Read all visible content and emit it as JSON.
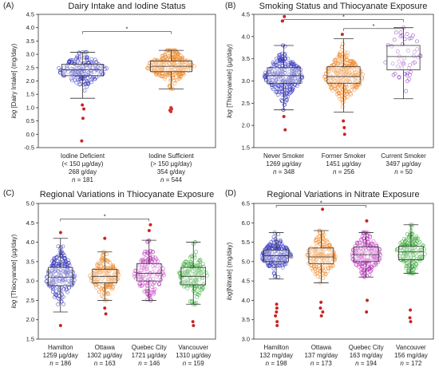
{
  "chart_data": [
    {
      "type": "box",
      "panel_label": "(A)",
      "title": "Dairy Intake and Iodine Status",
      "ylabel": "log [Dairy Intake] (mg/day)",
      "ylabel_italic": "log",
      "ylabel_rest": " [Dairy Intake] (mg/day)",
      "ylim": [
        -0.5,
        4.5
      ],
      "yticks": [
        "-0.5",
        "0.0",
        "0.5",
        "1.0",
        "1.5",
        "2.0",
        "2.5",
        "3.0",
        "3.5",
        "4.0",
        "4.5"
      ],
      "tick_values": [
        -0.5,
        0,
        0.5,
        1,
        1.5,
        2,
        2.5,
        3,
        3.5,
        4,
        4.5
      ],
      "categories": [
        {
          "lines": [
            "Iodine Deficient",
            "(< 150 µg/day)",
            "268 g/day"
          ],
          "n": "181"
        },
        {
          "lines": [
            "Iodine Sufficient",
            "(> 150 µg/day)",
            "354 g/day"
          ],
          "n": "544"
        }
      ],
      "series": [
        {
          "color": "#3b3bbf",
          "q1": 2.2,
          "median": 2.42,
          "q3": 2.63,
          "wlo": 1.35,
          "whi": 3.08,
          "count": 181,
          "outliers": [
            1.1,
            0.95,
            0.6,
            -0.25
          ]
        },
        {
          "color": "#f08a2c",
          "color2": "#d33333",
          "q1": 2.35,
          "median": 2.55,
          "q3": 2.75,
          "wlo": 1.7,
          "whi": 3.15,
          "count": 544,
          "outliers": [
            1.0,
            0.9,
            0.95,
            0.85
          ]
        }
      ],
      "significance": [
        {
          "from": 0,
          "to": 1,
          "y": 3.85,
          "label": "*"
        }
      ]
    },
    {
      "type": "box",
      "panel_label": "(B)",
      "title": "Smoking Status and Thiocyanate Exposure",
      "ylabel": "log [Thiocyanate] (µg/day)",
      "ylabel_italic": "log",
      "ylabel_rest": " [Thiocyanate] (µg/day)",
      "ylim": [
        1.5,
        4.5
      ],
      "yticks": [
        "1.5",
        "2.0",
        "2.5",
        "3.0",
        "3.5",
        "4.0",
        "4.5"
      ],
      "tick_values": [
        1.5,
        2,
        2.5,
        3,
        3.5,
        4,
        4.5
      ],
      "categories": [
        {
          "lines": [
            "Never Smoker",
            "1269 µg/day"
          ],
          "n": "348"
        },
        {
          "lines": [
            "Former Smoker",
            "1451 µg/day"
          ],
          "n": "256"
        },
        {
          "lines": [
            "Current Smoker",
            "3497 µg/day"
          ],
          "n": "50"
        }
      ],
      "series": [
        {
          "color": "#3b3bbf",
          "q1": 2.95,
          "median": 3.12,
          "q3": 3.3,
          "wlo": 2.35,
          "whi": 3.8,
          "count": 348,
          "outliers": [
            4.45,
            4.35,
            2.2,
            1.9
          ]
        },
        {
          "color": "#f08a2c",
          "q1": 2.95,
          "median": 3.1,
          "q3": 3.32,
          "wlo": 2.3,
          "whi": 3.95,
          "count": 256,
          "outliers": [
            2.1,
            1.95,
            1.8,
            4.05
          ]
        },
        {
          "color": "#8a3bbf",
          "q1": 3.25,
          "median": 3.55,
          "q3": 3.8,
          "wlo": 2.6,
          "whi": 4.2,
          "count": 50,
          "outliers": []
        }
      ],
      "significance": [
        {
          "from": 0,
          "to": 2,
          "y": 4.38,
          "label": "*"
        },
        {
          "from": 1,
          "to": 2,
          "y": 4.18,
          "label": "*"
        }
      ]
    },
    {
      "type": "box",
      "panel_label": "(C)",
      "title": "Regional Variations in Thiocyanate Exposure",
      "ylabel": "log [Thiocyanate] (µg/day)",
      "ylabel_italic": "log",
      "ylabel_rest": " [Thiocyanate] (µg/day)",
      "ylim": [
        1.5,
        5.0
      ],
      "yticks": [
        "1.5",
        "2.0",
        "2.5",
        "3.0",
        "3.5",
        "4.0",
        "4.5",
        "5.0"
      ],
      "tick_values": [
        1.5,
        2,
        2.5,
        3,
        3.5,
        4,
        4.5,
        5
      ],
      "categories": [
        {
          "lines": [
            "Hamilton",
            "1259 µg/day"
          ],
          "n": "186"
        },
        {
          "lines": [
            "Ottawa",
            "1302 µg/day"
          ],
          "n": "163"
        },
        {
          "lines": [
            "Quebec City",
            "1721 µg/day"
          ],
          "n": "146"
        },
        {
          "lines": [
            "Vancouver",
            "1310 µg/day"
          ],
          "n": "159"
        }
      ],
      "series": [
        {
          "color": "#3b3bbf",
          "q1": 2.88,
          "median": 3.1,
          "q3": 3.35,
          "wlo": 2.2,
          "whi": 4.1,
          "count": 186,
          "outliers": [
            4.25,
            1.85
          ]
        },
        {
          "color": "#f08a2c",
          "q1": 2.95,
          "median": 3.12,
          "q3": 3.3,
          "wlo": 2.5,
          "whi": 3.75,
          "count": 163,
          "outliers": [
            4.1,
            2.3,
            2.15
          ]
        },
        {
          "color": "#bf3bbf",
          "q1": 3.0,
          "median": 3.2,
          "q3": 3.45,
          "wlo": 2.5,
          "whi": 4.05,
          "count": 146,
          "outliers": [
            4.45,
            4.3
          ]
        },
        {
          "color": "#3bab3b",
          "q1": 2.9,
          "median": 3.12,
          "q3": 3.35,
          "wlo": 2.4,
          "whi": 4.0,
          "count": 159,
          "outliers": [
            1.95,
            1.85
          ]
        }
      ],
      "significance": [
        {
          "from": 0,
          "to": 2,
          "y": 4.6,
          "label": "*"
        }
      ]
    },
    {
      "type": "box",
      "panel_label": "(D)",
      "title": "Regional Variations in Nitrate Exposure",
      "ylabel": "log[Nitrate] (mg/day)",
      "ylabel_italic": "log",
      "ylabel_rest": "[Nitrate] (mg/day)",
      "ylim": [
        3.0,
        6.5
      ],
      "yticks": [
        "3.0",
        "3.5",
        "4.0",
        "4.5",
        "5.0",
        "5.5",
        "6.0",
        "6.5"
      ],
      "tick_values": [
        3,
        3.5,
        4,
        4.5,
        5,
        5.5,
        6,
        6.5
      ],
      "categories": [
        {
          "lines": [
            "Hamilton",
            "132 mg/day"
          ],
          "n": "198"
        },
        {
          "lines": [
            "Ottawa",
            "137 mg/day"
          ],
          "n": "173"
        },
        {
          "lines": [
            "Quebec City",
            "163 mg/day"
          ],
          "n": "194"
        },
        {
          "lines": [
            "Vancouver",
            "156 mg/day"
          ],
          "n": "172"
        }
      ],
      "series": [
        {
          "color": "#3b3bbf",
          "q1": 5.0,
          "median": 5.15,
          "q3": 5.3,
          "wlo": 4.55,
          "whi": 5.75,
          "count": 198,
          "outliers": [
            3.9,
            3.8,
            3.7,
            3.6,
            3.45,
            3.35
          ]
        },
        {
          "color": "#f08a2c",
          "q1": 4.95,
          "median": 5.12,
          "q3": 5.35,
          "wlo": 4.45,
          "whi": 5.8,
          "count": 173,
          "outliers": [
            3.95,
            3.8,
            3.7,
            3.6,
            6.35
          ]
        },
        {
          "color": "#bf3bbf",
          "q1": 5.0,
          "median": 5.18,
          "q3": 5.38,
          "wlo": 4.6,
          "whi": 5.75,
          "count": 194,
          "outliers": [
            4.0,
            3.7,
            6.05
          ]
        },
        {
          "color": "#3bab3b",
          "q1": 5.05,
          "median": 5.25,
          "q3": 5.4,
          "wlo": 4.7,
          "whi": 5.95,
          "count": 172,
          "outliers": [
            3.75,
            3.55,
            3.45
          ]
        }
      ],
      "significance": [
        {
          "from": 0,
          "to": 2,
          "y": 6.45,
          "label": "*"
        }
      ]
    }
  ]
}
